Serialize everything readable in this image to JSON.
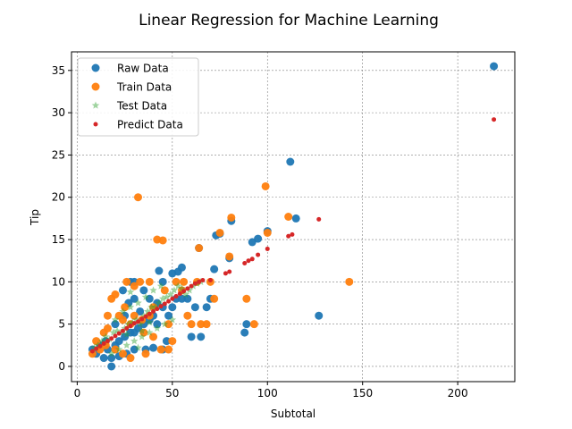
{
  "chart_data": {
    "type": "scatter",
    "title": "Linear Regression for Machine Learning",
    "xlabel": "Subtotal",
    "ylabel": "Tip",
    "xlim": [
      -3,
      230
    ],
    "ylim": [
      -1.8,
      37.2
    ],
    "xticks": [
      0,
      50,
      100,
      150,
      200
    ],
    "yticks": [
      0,
      5,
      10,
      15,
      20,
      25,
      30,
      35
    ],
    "xtick_labels": [
      "0",
      "50",
      "100",
      "150",
      "200"
    ],
    "ytick_labels": [
      "0",
      "5",
      "10",
      "15",
      "20",
      "25",
      "30",
      "35"
    ],
    "grid": true,
    "legend_position": "top-left",
    "series": [
      {
        "name": "Raw Data",
        "marker": "circle",
        "color": "#1f77b4",
        "points": [
          [
            8,
            2
          ],
          [
            10,
            1.5
          ],
          [
            12,
            2.5
          ],
          [
            14,
            1
          ],
          [
            16,
            2
          ],
          [
            18,
            0
          ],
          [
            20,
            2.5
          ],
          [
            22,
            3
          ],
          [
            25,
            3.5
          ],
          [
            28,
            4
          ],
          [
            30,
            4
          ],
          [
            32,
            4.5
          ],
          [
            35,
            5
          ],
          [
            38,
            5.5
          ],
          [
            40,
            6
          ],
          [
            42,
            5
          ],
          [
            45,
            7
          ],
          [
            48,
            6
          ],
          [
            50,
            7
          ],
          [
            52,
            8
          ],
          [
            55,
            8
          ],
          [
            20,
            5
          ],
          [
            25,
            6
          ],
          [
            30,
            8
          ],
          [
            35,
            9
          ],
          [
            28,
            10
          ],
          [
            30,
            10
          ],
          [
            43,
            11.3
          ],
          [
            50,
            11
          ],
          [
            53,
            11.2
          ],
          [
            55,
            11.7
          ],
          [
            58,
            8
          ],
          [
            62,
            7
          ],
          [
            68,
            7
          ],
          [
            70,
            8
          ],
          [
            72,
            11.5
          ],
          [
            73,
            15.5
          ],
          [
            75,
            15.7
          ],
          [
            64,
            14
          ],
          [
            80,
            12.8
          ],
          [
            81,
            17.2
          ],
          [
            88,
            4
          ],
          [
            89,
            5
          ],
          [
            92,
            14.7
          ],
          [
            95,
            15.1
          ],
          [
            100,
            16
          ],
          [
            112,
            24.2
          ],
          [
            115,
            17.5
          ],
          [
            127,
            6
          ],
          [
            219,
            35.5
          ],
          [
            15,
            3
          ],
          [
            18,
            1
          ],
          [
            22,
            1.2
          ],
          [
            26,
            1.5
          ],
          [
            30,
            2
          ],
          [
            36,
            2
          ],
          [
            40,
            2.2
          ],
          [
            45,
            2
          ],
          [
            47,
            3
          ],
          [
            60,
            3.5
          ],
          [
            65,
            3.5
          ],
          [
            45,
            10
          ],
          [
            38,
            8
          ],
          [
            33,
            6.5
          ],
          [
            27,
            7.5
          ],
          [
            24,
            9
          ],
          [
            42,
            7.5
          ]
        ]
      },
      {
        "name": "Train Data",
        "marker": "circle",
        "color": "#ff7f0e",
        "points": [
          [
            8,
            1.5
          ],
          [
            10,
            3
          ],
          [
            12,
            2
          ],
          [
            14,
            4
          ],
          [
            16,
            6
          ],
          [
            18,
            8
          ],
          [
            20,
            8.5
          ],
          [
            22,
            6
          ],
          [
            25,
            7
          ],
          [
            28,
            5
          ],
          [
            30,
            6
          ],
          [
            32,
            20
          ],
          [
            33,
            10
          ],
          [
            35,
            4
          ],
          [
            38,
            6
          ],
          [
            40,
            7
          ],
          [
            42,
            15
          ],
          [
            45,
            14.9
          ],
          [
            48,
            2
          ],
          [
            50,
            3
          ],
          [
            55,
            9
          ],
          [
            60,
            5
          ],
          [
            65,
            5
          ],
          [
            63,
            10
          ],
          [
            64,
            14
          ],
          [
            68,
            5
          ],
          [
            70,
            10
          ],
          [
            72,
            8
          ],
          [
            75,
            15.8
          ],
          [
            80,
            13
          ],
          [
            81,
            17.6
          ],
          [
            89,
            8
          ],
          [
            93,
            5
          ],
          [
            99,
            21.3
          ],
          [
            100,
            15.8
          ],
          [
            111,
            17.7
          ],
          [
            143,
            10
          ],
          [
            15,
            2.5
          ],
          [
            20,
            2
          ],
          [
            24,
            1.5
          ],
          [
            28,
            1
          ],
          [
            36,
            1.5
          ],
          [
            44,
            2
          ],
          [
            26,
            10
          ],
          [
            30,
            9.5
          ],
          [
            38,
            10
          ],
          [
            46,
            9
          ],
          [
            52,
            10
          ],
          [
            56,
            10
          ],
          [
            16,
            4.5
          ],
          [
            24,
            5.5
          ],
          [
            34,
            5.5
          ],
          [
            40,
            3.5
          ],
          [
            48,
            5
          ],
          [
            58,
            6
          ]
        ]
      },
      {
        "name": "Test Data",
        "marker": "star",
        "color": "#2ca02c",
        "points": [
          [
            9,
            2.2
          ],
          [
            11,
            2.5
          ],
          [
            13,
            3
          ],
          [
            15,
            3.5
          ],
          [
            17,
            3.2
          ],
          [
            19,
            4
          ],
          [
            21,
            4.2
          ],
          [
            23,
            4
          ],
          [
            25,
            4.5
          ],
          [
            27,
            5
          ],
          [
            29,
            5.2
          ],
          [
            31,
            5.5
          ],
          [
            33,
            5
          ],
          [
            35,
            6
          ],
          [
            37,
            6.5
          ],
          [
            39,
            7
          ],
          [
            41,
            7
          ],
          [
            43,
            7.5
          ],
          [
            45,
            8
          ],
          [
            47,
            8.2
          ],
          [
            49,
            8.5
          ],
          [
            51,
            9
          ],
          [
            53,
            9.5
          ],
          [
            55,
            9.2
          ],
          [
            57,
            8.5
          ],
          [
            59,
            9
          ],
          [
            61,
            9.5
          ],
          [
            63,
            9.8
          ],
          [
            65,
            10
          ],
          [
            18,
            1.5
          ],
          [
            22,
            2
          ],
          [
            26,
            2.5
          ],
          [
            30,
            3
          ],
          [
            34,
            3.5
          ],
          [
            38,
            4
          ],
          [
            42,
            4.5
          ],
          [
            46,
            5
          ],
          [
            50,
            5.5
          ],
          [
            24,
            6.5
          ],
          [
            28,
            7
          ],
          [
            32,
            7.5
          ],
          [
            36,
            8.2
          ],
          [
            40,
            9
          ],
          [
            44,
            9.5
          ],
          [
            20,
            5.5
          ],
          [
            26,
            3.8
          ],
          [
            32,
            2.2
          ],
          [
            28,
            8.8
          ],
          [
            34,
            4.2
          ],
          [
            38,
            5.2
          ]
        ]
      },
      {
        "name": "Predict Data",
        "marker": "point",
        "color": "#d62728",
        "points": [
          [
            8,
            1.8
          ],
          [
            10,
            2.1
          ],
          [
            12,
            2.4
          ],
          [
            14,
            2.7
          ],
          [
            16,
            3
          ],
          [
            18,
            3.3
          ],
          [
            20,
            3.6
          ],
          [
            22,
            3.9
          ],
          [
            24,
            4.2
          ],
          [
            26,
            4.5
          ],
          [
            28,
            4.8
          ],
          [
            30,
            5.1
          ],
          [
            32,
            5.3
          ],
          [
            34,
            5.6
          ],
          [
            36,
            5.9
          ],
          [
            38,
            6.2
          ],
          [
            40,
            6.5
          ],
          [
            42,
            6.8
          ],
          [
            44,
            7.1
          ],
          [
            46,
            7.4
          ],
          [
            48,
            7.7
          ],
          [
            50,
            8
          ],
          [
            52,
            8.3
          ],
          [
            54,
            8.6
          ],
          [
            56,
            8.9
          ],
          [
            58,
            9.2
          ],
          [
            60,
            9.5
          ],
          [
            62,
            9.8
          ],
          [
            64,
            10
          ],
          [
            66,
            10.2
          ],
          [
            70,
            10.2
          ],
          [
            78,
            11
          ],
          [
            80,
            11.2
          ],
          [
            88,
            12.2
          ],
          [
            90,
            12.5
          ],
          [
            92,
            12.7
          ],
          [
            95,
            13.2
          ],
          [
            100,
            13.9
          ],
          [
            111,
            15.4
          ],
          [
            113,
            15.6
          ],
          [
            127,
            17.4
          ],
          [
            219,
            29.2
          ]
        ]
      }
    ]
  }
}
